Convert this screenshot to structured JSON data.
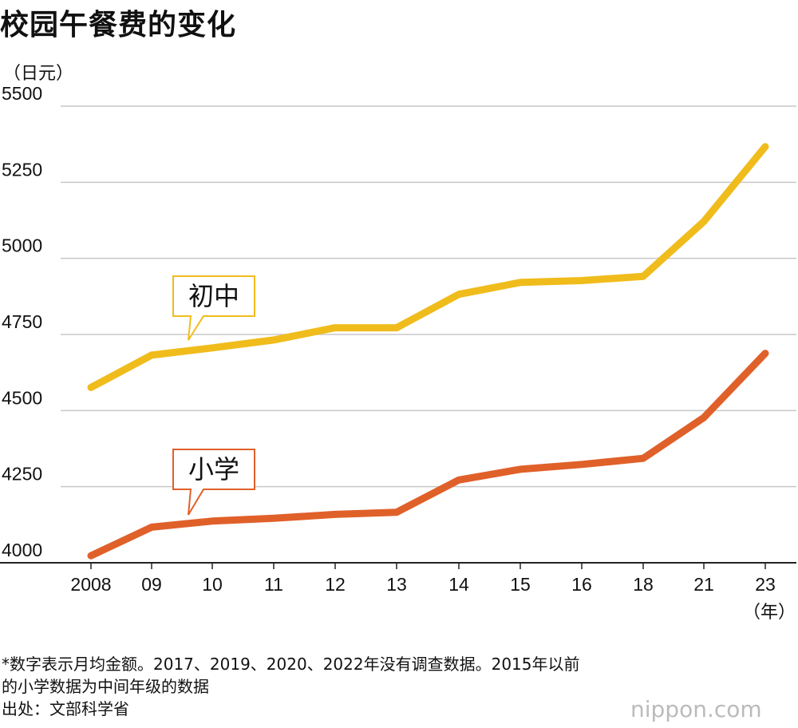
{
  "chart_data": {
    "type": "line",
    "title": "校园午餐费的变化",
    "ylabel": "（日元）",
    "xunit": "（年）",
    "categories": [
      "2008",
      "09",
      "10",
      "11",
      "12",
      "13",
      "14",
      "15",
      "16",
      "18",
      "21",
      "23"
    ],
    "ylim": [
      4000,
      5500
    ],
    "yticks": [
      4000,
      4250,
      4500,
      4750,
      5000,
      5250,
      5500
    ],
    "grid": true,
    "series": [
      {
        "name": "初中",
        "color": "#f0bc1c",
        "values": [
          4576,
          4682,
          4706,
          4732,
          4772,
          4772,
          4882,
          4921,
          4927,
          4941,
          5121,
          5367
        ]
      },
      {
        "name": "小学",
        "color": "#e0602a",
        "values": [
          4023,
          4117,
          4137,
          4146,
          4159,
          4166,
          4272,
          4307,
          4323,
          4343,
          4477,
          4688
        ]
      }
    ]
  },
  "notes": [
    "*数字表示月均金额。2017、2019、2020、2022年没有调查数据。2015年以前",
    "的小学数据为中间年级的数据",
    "出处：文部科学省"
  ],
  "watermark": "nippon.com"
}
